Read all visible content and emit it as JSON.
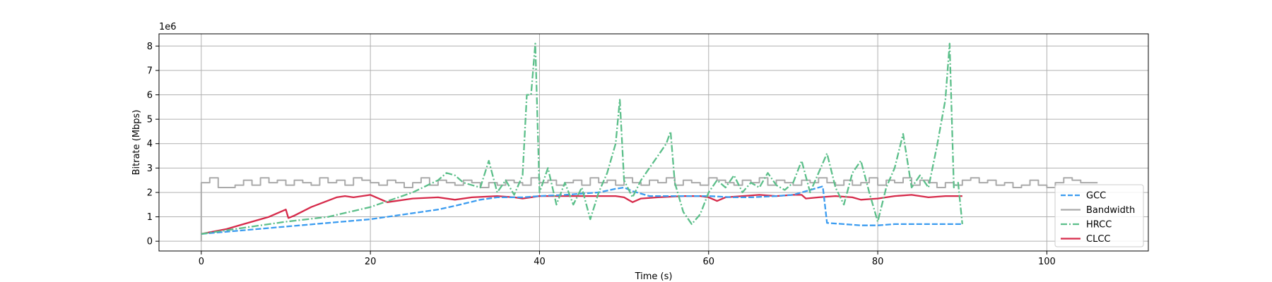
{
  "chart_data": {
    "type": "line",
    "xlabel": "Time (s)",
    "ylabel": "Bitrate (Mbps)",
    "y_offset_text": "1e6",
    "xlim": [
      -5,
      112
    ],
    "ylim": [
      -400000,
      8500000
    ],
    "xticks": [
      0,
      20,
      40,
      60,
      80,
      100
    ],
    "yticks": [
      0,
      1000000,
      2000000,
      3000000,
      4000000,
      5000000,
      6000000,
      7000000,
      8000000
    ],
    "ytick_labels": [
      "0",
      "1",
      "2",
      "3",
      "4",
      "5",
      "6",
      "7",
      "8"
    ],
    "grid": true,
    "legend_position": "lower-right",
    "series": [
      {
        "name": "GCC",
        "color": "#3b9cf0",
        "style": "dashed",
        "x": [
          0,
          5,
          10,
          15,
          20,
          25,
          28,
          30,
          33,
          35,
          38,
          40,
          43,
          45,
          47,
          49,
          50,
          51,
          53,
          55,
          57,
          60,
          63,
          65,
          68,
          70,
          72,
          73.5,
          74,
          76,
          78,
          80,
          82,
          85,
          88,
          90
        ],
        "y": [
          300000,
          450000,
          600000,
          750000,
          900000,
          1150000,
          1300000,
          1450000,
          1700000,
          1800000,
          1800000,
          1850000,
          1900000,
          1950000,
          2000000,
          2150000,
          2200000,
          2050000,
          1850000,
          1850000,
          1850000,
          1850000,
          1800000,
          1800000,
          1850000,
          1900000,
          2100000,
          2250000,
          750000,
          700000,
          650000,
          650000,
          700000,
          700000,
          700000,
          700000
        ]
      },
      {
        "name": "Bandwidth",
        "color": "#aaaaaa",
        "style": "step",
        "x": [
          0,
          0,
          1,
          2,
          3,
          4,
          5,
          6,
          7,
          8,
          9,
          10,
          11,
          12,
          13,
          14,
          15,
          16,
          17,
          18,
          19,
          20,
          21,
          22,
          23,
          24,
          25,
          26,
          27,
          28,
          29,
          30,
          31,
          32,
          33,
          34,
          35,
          36,
          37,
          38,
          39,
          40,
          41,
          42,
          43,
          44,
          45,
          46,
          47,
          48,
          49,
          50,
          51,
          52,
          53,
          54,
          55,
          56,
          57,
          58,
          59,
          60,
          61,
          62,
          63,
          64,
          65,
          66,
          67,
          68,
          69,
          70,
          71,
          72,
          73,
          74,
          75,
          76,
          77,
          78,
          79,
          80,
          81,
          82,
          83,
          84,
          85,
          86,
          87,
          88,
          89,
          90,
          91,
          92,
          93,
          94,
          95,
          96,
          97,
          98,
          99,
          100,
          101,
          102,
          103,
          104,
          105,
          106
        ],
        "y": [
          0,
          2400000,
          2600000,
          2200000,
          2200000,
          2300000,
          2500000,
          2300000,
          2600000,
          2400000,
          2500000,
          2300000,
          2500000,
          2400000,
          2300000,
          2600000,
          2400000,
          2500000,
          2300000,
          2600000,
          2500000,
          2400000,
          2300000,
          2500000,
          2400000,
          2200000,
          2400000,
          2600000,
          2300000,
          2500000,
          2400000,
          2300000,
          2500000,
          2400000,
          2200000,
          2400000,
          2300000,
          2500000,
          2400000,
          2300000,
          2600000,
          2400000,
          2500000,
          2300000,
          2400000,
          2500000,
          2300000,
          2600000,
          2400000,
          2500000,
          2300000,
          2600000,
          2400000,
          2300000,
          2500000,
          2400000,
          2600000,
          2300000,
          2500000,
          2400000,
          2300000,
          2600000,
          2500000,
          2400000,
          2300000,
          2500000,
          2400000,
          2600000,
          2300000,
          2500000,
          2400000,
          2300000,
          2500000,
          2400000,
          2600000,
          2400000,
          2300000,
          2500000,
          2300000,
          2400000,
          2600000,
          2300000,
          2500000,
          2400000,
          2600000,
          2300000,
          2500000,
          2400000,
          2200000,
          2400000,
          2300000,
          2500000,
          2600000,
          2400000,
          2500000,
          2300000,
          2400000,
          2200000,
          2300000,
          2500000,
          2300000,
          2200000,
          2400000,
          2600000,
          2500000,
          2400000,
          2400000,
          2400000
        ]
      },
      {
        "name": "HRCC",
        "color": "#5cbf8a",
        "style": "dashdot",
        "x": [
          0,
          5,
          10,
          15,
          20,
          25,
          28,
          29,
          30,
          31,
          33,
          34,
          35,
          36,
          37,
          38,
          38.5,
          39,
          39.5,
          40,
          41,
          42,
          43,
          44,
          45,
          46,
          47,
          48,
          49,
          49.5,
          50,
          51,
          52,
          53,
          54,
          55,
          55.5,
          56,
          57,
          58,
          59,
          60,
          61,
          62,
          63,
          64,
          65,
          66,
          67,
          68,
          69,
          70,
          71,
          72,
          73,
          74,
          75,
          76,
          77,
          78,
          79,
          80,
          81,
          82,
          83,
          84,
          85,
          86,
          87,
          88,
          88.5,
          89,
          89.5,
          90
        ],
        "y": [
          300000,
          550000,
          800000,
          1000000,
          1400000,
          2000000,
          2500000,
          2800000,
          2700000,
          2400000,
          2200000,
          3300000,
          2000000,
          2500000,
          1900000,
          2700000,
          6000000,
          6000000,
          8100000,
          2000000,
          3000000,
          1500000,
          2400000,
          1500000,
          2200000,
          900000,
          2000000,
          2800000,
          4000000,
          5800000,
          2500000,
          1800000,
          2500000,
          3000000,
          3500000,
          4000000,
          4500000,
          2400000,
          1200000,
          700000,
          1100000,
          2000000,
          2500000,
          2200000,
          2700000,
          2000000,
          2400000,
          2200000,
          2800000,
          2300000,
          2100000,
          2400000,
          3300000,
          2000000,
          2800000,
          3600000,
          2200000,
          1500000,
          2800000,
          3300000,
          2000000,
          800000,
          2200000,
          3000000,
          4400000,
          2200000,
          2700000,
          2200000,
          3900000,
          5800000,
          8100000,
          2200000,
          2400000,
          700000
        ]
      },
      {
        "name": "CLCC",
        "color": "#d62a4a",
        "style": "solid",
        "x": [
          0,
          3,
          5,
          8,
          10,
          10.3,
          11,
          13,
          16,
          17,
          18,
          20,
          22,
          25,
          28,
          30,
          32,
          35,
          37,
          38,
          40,
          41,
          43,
          45,
          47,
          49,
          50,
          51,
          52,
          54,
          57,
          59,
          60,
          61,
          62,
          64,
          66,
          68,
          70,
          71,
          71.5,
          73,
          75,
          77,
          78,
          80,
          82,
          84,
          86,
          88,
          90
        ],
        "y": [
          300000,
          500000,
          700000,
          1000000,
          1300000,
          950000,
          1050000,
          1400000,
          1800000,
          1850000,
          1800000,
          1900000,
          1600000,
          1750000,
          1800000,
          1700000,
          1800000,
          1850000,
          1800000,
          1750000,
          1850000,
          1850000,
          1850000,
          1850000,
          1850000,
          1850000,
          1800000,
          1600000,
          1750000,
          1800000,
          1850000,
          1850000,
          1800000,
          1650000,
          1800000,
          1850000,
          1900000,
          1850000,
          1900000,
          1900000,
          1750000,
          1800000,
          1850000,
          1800000,
          1700000,
          1750000,
          1850000,
          1900000,
          1800000,
          1850000,
          1850000
        ]
      }
    ]
  }
}
